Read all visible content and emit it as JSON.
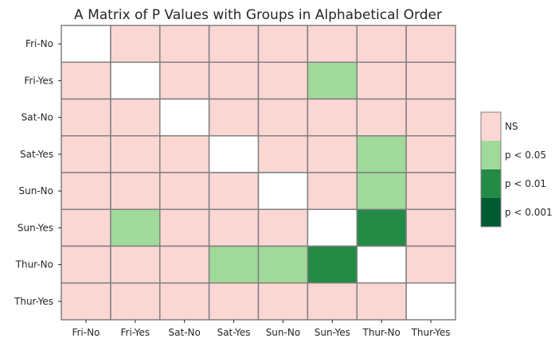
{
  "chart_data": {
    "type": "heatmap",
    "title": "A Matrix of P Values with Groups in Alphabetical Order",
    "xlabel": "",
    "ylabel": "",
    "categories": [
      "Fri-No",
      "Fri-Yes",
      "Sat-No",
      "Sat-Yes",
      "Sun-No",
      "Sun-Yes",
      "Thur-No",
      "Thur-Yes"
    ],
    "levels": [
      {
        "code": -1,
        "label": "",
        "color": "#ffffff"
      },
      {
        "code": 0,
        "label": "NS",
        "color": "#fbd7d4"
      },
      {
        "code": 1,
        "label": "p < 0.05",
        "color": "#a1d99b"
      },
      {
        "code": 2,
        "label": "p < 0.01",
        "color": "#238b45"
      },
      {
        "code": 3,
        "label": "p < 0.001",
        "color": "#005a32"
      }
    ],
    "matrix": [
      [
        -1,
        0,
        0,
        0,
        0,
        0,
        0,
        0
      ],
      [
        0,
        -1,
        0,
        0,
        0,
        1,
        0,
        0
      ],
      [
        0,
        0,
        -1,
        0,
        0,
        0,
        0,
        0
      ],
      [
        0,
        0,
        0,
        -1,
        0,
        0,
        1,
        0
      ],
      [
        0,
        0,
        0,
        0,
        -1,
        0,
        1,
        0
      ],
      [
        0,
        1,
        0,
        0,
        0,
        -1,
        2,
        0
      ],
      [
        0,
        0,
        0,
        1,
        1,
        2,
        -1,
        0
      ],
      [
        0,
        0,
        0,
        0,
        0,
        0,
        0,
        -1
      ]
    ],
    "legend": {
      "position": "right",
      "entries": [
        "NS",
        "p < 0.05",
        "p < 0.01",
        "p < 0.001"
      ]
    },
    "cell_border_color": "#808080",
    "grid": false
  }
}
